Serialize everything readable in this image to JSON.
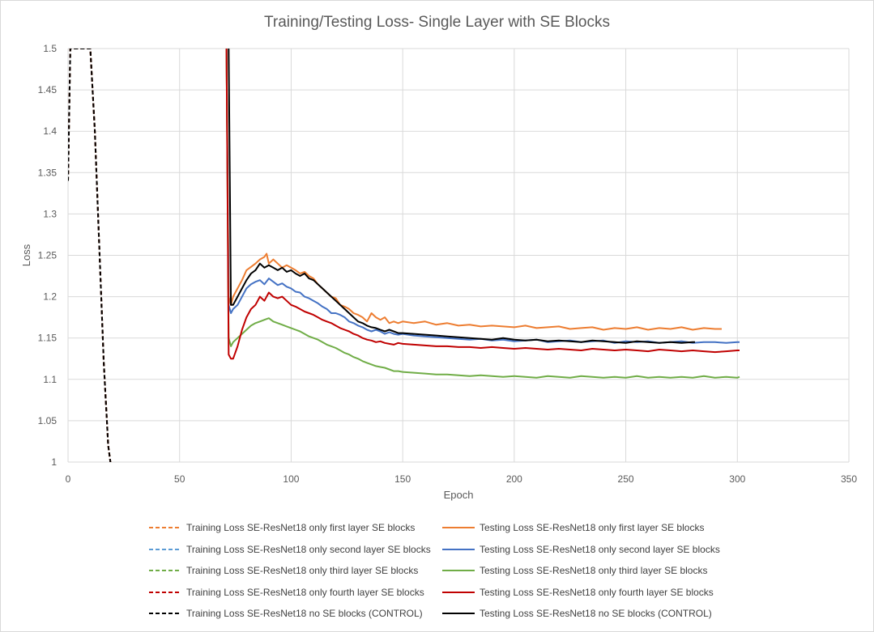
{
  "chart_data": {
    "type": "line",
    "title": "Training/Testing Loss- Single Layer with SE Blocks",
    "xlabel": "Epoch",
    "ylabel": "Loss",
    "xlim": [
      0,
      350
    ],
    "ylim": [
      1,
      1.5
    ],
    "xticks": [
      "0",
      "50",
      "100",
      "150",
      "200",
      "250",
      "300",
      "350"
    ],
    "yticks": [
      "1",
      "1.05",
      "1.1",
      "1.15",
      "1.2",
      "1.25",
      "1.3",
      "1.35",
      "1.4",
      "1.45",
      "1.5"
    ],
    "grid": true,
    "legend_position": "bottom",
    "series": [
      {
        "name": "Training Loss SE-ResNet18 only first layer SE blocks",
        "style": "dashed",
        "color": "#ED7D31",
        "x": [
          0,
          1,
          10,
          12,
          14,
          16,
          18,
          19
        ],
        "y": [
          1.34,
          1.5,
          1.5,
          1.4,
          1.26,
          1.12,
          1.02,
          1.0
        ]
      },
      {
        "name": "Testing Loss SE-ResNet18 only first layer SE blocks",
        "style": "solid",
        "color": "#ED7D31",
        "x": [
          71,
          72,
          73,
          74,
          76,
          78,
          80,
          82,
          84,
          86,
          88,
          89,
          90,
          92,
          94,
          96,
          98,
          100,
          102,
          104,
          106,
          108,
          110,
          112,
          114,
          116,
          118,
          120,
          122,
          124,
          126,
          128,
          130,
          132,
          134,
          136,
          138,
          140,
          142,
          144,
          146,
          148,
          150,
          155,
          160,
          165,
          170,
          175,
          180,
          185,
          190,
          195,
          200,
          205,
          210,
          215,
          220,
          225,
          230,
          235,
          240,
          245,
          250,
          255,
          260,
          265,
          270,
          275,
          280,
          285,
          290,
          293
        ],
        "y": [
          1.5,
          1.2,
          1.19,
          1.2,
          1.21,
          1.22,
          1.232,
          1.236,
          1.24,
          1.245,
          1.248,
          1.252,
          1.24,
          1.245,
          1.24,
          1.235,
          1.238,
          1.235,
          1.232,
          1.228,
          1.23,
          1.225,
          1.222,
          1.215,
          1.21,
          1.205,
          1.2,
          1.198,
          1.19,
          1.188,
          1.185,
          1.18,
          1.178,
          1.175,
          1.17,
          1.18,
          1.175,
          1.172,
          1.175,
          1.168,
          1.17,
          1.168,
          1.17,
          1.168,
          1.17,
          1.166,
          1.168,
          1.165,
          1.166,
          1.164,
          1.165,
          1.164,
          1.163,
          1.165,
          1.162,
          1.163,
          1.164,
          1.161,
          1.162,
          1.163,
          1.16,
          1.162,
          1.161,
          1.163,
          1.16,
          1.162,
          1.161,
          1.163,
          1.16,
          1.162,
          1.161,
          1.161
        ]
      },
      {
        "name": "Training Loss SE-ResNet18 only second layer SE blocks",
        "style": "dashed",
        "color": "#5B9BD5",
        "x": [
          0,
          1,
          10,
          12,
          14,
          16,
          18,
          19
        ],
        "y": [
          1.34,
          1.5,
          1.5,
          1.4,
          1.26,
          1.12,
          1.02,
          1.0
        ]
      },
      {
        "name": "Testing Loss SE-ResNet18 only second layer SE blocks",
        "style": "solid",
        "color": "#4472C4",
        "x": [
          71,
          72,
          73,
          74,
          76,
          78,
          80,
          82,
          84,
          86,
          88,
          90,
          92,
          94,
          96,
          98,
          100,
          102,
          104,
          106,
          108,
          110,
          112,
          114,
          116,
          118,
          120,
          122,
          124,
          126,
          128,
          130,
          132,
          134,
          136,
          138,
          140,
          142,
          144,
          146,
          148,
          150,
          155,
          160,
          165,
          170,
          175,
          180,
          185,
          190,
          195,
          200,
          205,
          210,
          215,
          220,
          225,
          230,
          235,
          240,
          245,
          250,
          255,
          260,
          265,
          270,
          275,
          280,
          285,
          290,
          295,
          300,
          301
        ],
        "y": [
          1.5,
          1.19,
          1.18,
          1.185,
          1.19,
          1.2,
          1.21,
          1.215,
          1.218,
          1.22,
          1.215,
          1.222,
          1.218,
          1.214,
          1.216,
          1.212,
          1.21,
          1.206,
          1.205,
          1.2,
          1.198,
          1.195,
          1.192,
          1.188,
          1.185,
          1.18,
          1.18,
          1.178,
          1.175,
          1.17,
          1.168,
          1.165,
          1.163,
          1.16,
          1.158,
          1.16,
          1.158,
          1.155,
          1.157,
          1.155,
          1.154,
          1.155,
          1.153,
          1.152,
          1.151,
          1.15,
          1.149,
          1.148,
          1.149,
          1.147,
          1.148,
          1.146,
          1.147,
          1.148,
          1.145,
          1.146,
          1.147,
          1.145,
          1.146,
          1.147,
          1.144,
          1.146,
          1.145,
          1.146,
          1.144,
          1.145,
          1.146,
          1.144,
          1.145,
          1.145,
          1.144,
          1.145,
          1.145
        ]
      },
      {
        "name": "Training Loss SE-ResNet18 only third layer SE blocks",
        "style": "dashed",
        "color": "#70AD47",
        "x": [
          0,
          1,
          10,
          12,
          14,
          16,
          18,
          19
        ],
        "y": [
          1.34,
          1.5,
          1.5,
          1.4,
          1.26,
          1.12,
          1.02,
          1.0
        ]
      },
      {
        "name": "Testing Loss SE-ResNet18 only third layer SE blocks",
        "style": "solid",
        "color": "#70AD47",
        "x": [
          71,
          72,
          73,
          74,
          76,
          78,
          80,
          82,
          84,
          86,
          88,
          90,
          92,
          94,
          96,
          98,
          100,
          102,
          104,
          106,
          108,
          110,
          112,
          114,
          116,
          118,
          120,
          122,
          124,
          126,
          128,
          130,
          132,
          134,
          136,
          138,
          140,
          142,
          144,
          146,
          148,
          150,
          155,
          160,
          165,
          170,
          175,
          180,
          185,
          190,
          195,
          200,
          205,
          210,
          215,
          220,
          225,
          230,
          235,
          240,
          245,
          250,
          255,
          260,
          265,
          270,
          275,
          280,
          285,
          290,
          295,
          300,
          301
        ],
        "y": [
          1.5,
          1.15,
          1.14,
          1.145,
          1.15,
          1.155,
          1.16,
          1.165,
          1.168,
          1.17,
          1.172,
          1.174,
          1.17,
          1.168,
          1.166,
          1.164,
          1.162,
          1.16,
          1.158,
          1.155,
          1.152,
          1.15,
          1.148,
          1.145,
          1.142,
          1.14,
          1.138,
          1.135,
          1.132,
          1.13,
          1.127,
          1.125,
          1.122,
          1.12,
          1.118,
          1.116,
          1.115,
          1.114,
          1.112,
          1.11,
          1.11,
          1.109,
          1.108,
          1.107,
          1.106,
          1.106,
          1.105,
          1.104,
          1.105,
          1.104,
          1.103,
          1.104,
          1.103,
          1.102,
          1.104,
          1.103,
          1.102,
          1.104,
          1.103,
          1.102,
          1.103,
          1.102,
          1.104,
          1.102,
          1.103,
          1.102,
          1.103,
          1.102,
          1.104,
          1.102,
          1.103,
          1.102,
          1.103
        ]
      },
      {
        "name": "Training Loss SE-ResNet18 only fourth layer SE blocks",
        "style": "dashed",
        "color": "#C00000",
        "x": [
          0,
          1,
          10,
          12,
          14,
          16,
          18,
          19
        ],
        "y": [
          1.34,
          1.5,
          1.5,
          1.4,
          1.26,
          1.12,
          1.02,
          1.0
        ]
      },
      {
        "name": "Testing Loss SE-ResNet18 only fourth layer SE blocks",
        "style": "solid",
        "color": "#C00000",
        "x": [
          71,
          72,
          73,
          74,
          76,
          78,
          80,
          82,
          84,
          86,
          88,
          90,
          92,
          94,
          96,
          98,
          100,
          102,
          104,
          106,
          108,
          110,
          112,
          114,
          116,
          118,
          120,
          122,
          124,
          126,
          128,
          130,
          132,
          134,
          136,
          138,
          140,
          142,
          144,
          146,
          148,
          150,
          155,
          160,
          165,
          170,
          175,
          180,
          185,
          190,
          195,
          200,
          205,
          210,
          215,
          220,
          225,
          230,
          235,
          240,
          245,
          250,
          255,
          260,
          265,
          270,
          275,
          280,
          285,
          290,
          295,
          300,
          301
        ],
        "y": [
          1.5,
          1.13,
          1.125,
          1.125,
          1.14,
          1.16,
          1.175,
          1.185,
          1.19,
          1.2,
          1.195,
          1.205,
          1.2,
          1.198,
          1.2,
          1.195,
          1.19,
          1.188,
          1.185,
          1.182,
          1.18,
          1.178,
          1.175,
          1.172,
          1.17,
          1.168,
          1.165,
          1.162,
          1.16,
          1.158,
          1.155,
          1.153,
          1.15,
          1.148,
          1.147,
          1.145,
          1.146,
          1.144,
          1.143,
          1.142,
          1.144,
          1.143,
          1.142,
          1.141,
          1.14,
          1.14,
          1.139,
          1.139,
          1.138,
          1.139,
          1.138,
          1.137,
          1.138,
          1.137,
          1.136,
          1.137,
          1.136,
          1.135,
          1.137,
          1.136,
          1.135,
          1.136,
          1.135,
          1.134,
          1.136,
          1.135,
          1.134,
          1.135,
          1.134,
          1.133,
          1.134,
          1.135,
          1.135
        ]
      },
      {
        "name": "Training Loss SE-ResNet18 no SE blocks (CONTROL)",
        "style": "dashed",
        "color": "#000000",
        "x": [
          0,
          1,
          10,
          12,
          14,
          16,
          18,
          19
        ],
        "y": [
          1.34,
          1.5,
          1.5,
          1.4,
          1.26,
          1.12,
          1.02,
          1.0
        ]
      },
      {
        "name": "Testing Loss SE-ResNet18 no SE blocks (CONTROL)",
        "style": "solid",
        "color": "#000000",
        "x": [
          72,
          73,
          74,
          76,
          78,
          80,
          82,
          84,
          86,
          88,
          90,
          92,
          94,
          96,
          98,
          100,
          102,
          104,
          106,
          108,
          110,
          112,
          114,
          116,
          118,
          120,
          122,
          124,
          126,
          128,
          130,
          132,
          134,
          136,
          138,
          140,
          142,
          144,
          146,
          148,
          150,
          155,
          160,
          165,
          170,
          175,
          180,
          185,
          190,
          195,
          200,
          205,
          210,
          215,
          220,
          225,
          230,
          235,
          240,
          245,
          250,
          255,
          260,
          265,
          270,
          275,
          280,
          281
        ],
        "y": [
          1.5,
          1.19,
          1.19,
          1.2,
          1.21,
          1.22,
          1.228,
          1.232,
          1.24,
          1.235,
          1.238,
          1.235,
          1.232,
          1.235,
          1.23,
          1.232,
          1.228,
          1.225,
          1.228,
          1.222,
          1.22,
          1.215,
          1.21,
          1.205,
          1.2,
          1.195,
          1.19,
          1.185,
          1.18,
          1.175,
          1.17,
          1.168,
          1.165,
          1.163,
          1.162,
          1.16,
          1.158,
          1.16,
          1.158,
          1.156,
          1.156,
          1.155,
          1.154,
          1.153,
          1.152,
          1.151,
          1.15,
          1.149,
          1.148,
          1.15,
          1.148,
          1.147,
          1.148,
          1.146,
          1.147,
          1.146,
          1.145,
          1.147,
          1.146,
          1.145,
          1.144,
          1.146,
          1.145,
          1.144,
          1.145,
          1.144,
          1.145,
          1.145
        ]
      }
    ]
  }
}
